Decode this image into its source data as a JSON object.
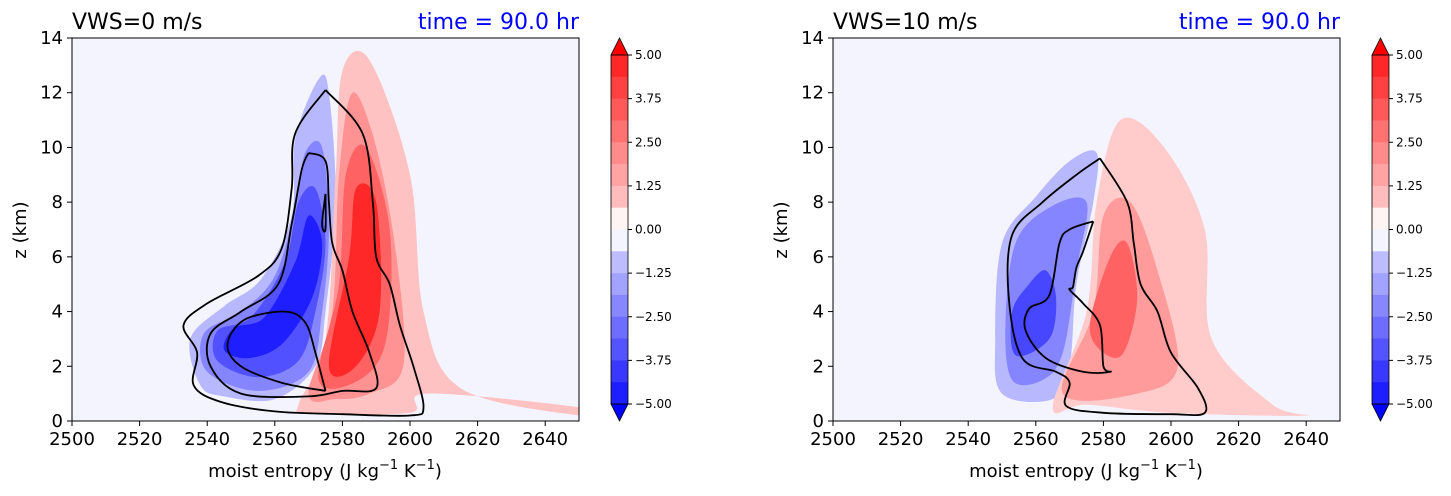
{
  "chart_data": [
    {
      "type": "contour",
      "title": "VWS=0 m/s",
      "title_right": "time = 90.0 hr",
      "title_right_color": "#0000ff",
      "xlabel": "moist entropy (J kg",
      "xlabel_sup1": "−1",
      "xlabel_mid": " K",
      "xlabel_sup2": "−1",
      "xlabel_end": ")",
      "ylabel": "z (km)",
      "xlim": [
        2500,
        2650
      ],
      "ylim": [
        0,
        14
      ],
      "xticks": [
        "2500",
        "2520",
        "2540",
        "2560",
        "2580",
        "2600",
        "2620",
        "2640"
      ],
      "yticks": [
        "0",
        "2",
        "4",
        "6",
        "8",
        "10",
        "12",
        "14"
      ],
      "colorbar": {
        "range": [
          -5.0,
          5.0
        ],
        "ticks": [
          "5.00",
          "3.75",
          "2.50",
          "1.25",
          "0.00",
          "−1.25",
          "−2.50",
          "−3.75",
          "−5.00"
        ],
        "cmap": "bwr"
      },
      "negative_regions": [
        {
          "level": 0.25,
          "points": [
            [
              2538,
              1.3
            ],
            [
              2535,
              3.0
            ],
            [
              2545,
              4.2
            ],
            [
              2556,
              5.2
            ],
            [
              2565,
              7.5
            ],
            [
              2566,
              10.3
            ],
            [
              2573,
              12.5
            ],
            [
              2576,
              12
            ],
            [
              2578,
              8
            ],
            [
              2575,
              4
            ],
            [
              2572,
              2
            ],
            [
              2560,
              0.8
            ],
            [
              2545,
              0.9
            ]
          ]
        },
        {
          "level": 0.5,
          "points": [
            [
              2540,
              1.8
            ],
            [
              2539,
              3.2
            ],
            [
              2550,
              4.0
            ],
            [
              2560,
              5.3
            ],
            [
              2566,
              7.8
            ],
            [
              2569,
              9.8
            ],
            [
              2574,
              10
            ],
            [
              2576,
              7
            ],
            [
              2574,
              4
            ],
            [
              2570,
              1.8
            ],
            [
              2555,
              1.1
            ]
          ]
        },
        {
          "level": 0.75,
          "points": [
            [
              2543,
              2.2
            ],
            [
              2543,
              3.3
            ],
            [
              2553,
              3.8
            ],
            [
              2563,
              5.8
            ],
            [
              2567,
              8
            ],
            [
              2572,
              8.5
            ],
            [
              2575,
              6.5
            ],
            [
              2572,
              4
            ],
            [
              2567,
              2.2
            ],
            [
              2555,
              1.6
            ]
          ]
        },
        {
          "level": 1.0,
          "points": [
            [
              2545,
              2.6
            ],
            [
              2548,
              3.4
            ],
            [
              2557,
              3.8
            ],
            [
              2566,
              5.8
            ],
            [
              2570,
              7.5
            ],
            [
              2574,
              6.5
            ],
            [
              2571,
              4.5
            ],
            [
              2562,
              2.8
            ],
            [
              2552,
              2.3
            ]
          ]
        }
      ],
      "positive_regions": [
        {
          "level": 0.2,
          "points": [
            [
              2567,
              0.6
            ],
            [
              2575,
              3.0
            ],
            [
              2578,
              9.0
            ],
            [
              2580,
              12.8
            ],
            [
              2588,
              13.2
            ],
            [
              2600,
              9
            ],
            [
              2604,
              4
            ],
            [
              2615,
              1.2
            ],
            [
              2650,
              0.2
            ],
            [
              2650,
              0.5
            ],
            [
              2605,
              1
            ],
            [
              2600,
              0.3
            ],
            [
              2570,
              0.3
            ]
          ]
        },
        {
          "level": 0.45,
          "points": [
            [
              2570,
              1.0
            ],
            [
              2577,
              4
            ],
            [
              2579,
              9
            ],
            [
              2583,
              12
            ],
            [
              2590,
              10
            ],
            [
              2596,
              6
            ],
            [
              2598,
              2
            ],
            [
              2588,
              1
            ],
            [
              2578,
              0.8
            ]
          ]
        },
        {
          "level": 0.7,
          "points": [
            [
              2573,
              1.5
            ],
            [
              2579,
              5
            ],
            [
              2581,
              9
            ],
            [
              2587,
              10
            ],
            [
              2594,
              7
            ],
            [
              2593,
              3
            ],
            [
              2585,
              1.5
            ]
          ]
        },
        {
          "level": 1.0,
          "points": [
            [
              2576,
              2
            ],
            [
              2582,
              6
            ],
            [
              2584,
              8.5
            ],
            [
              2590,
              8
            ],
            [
              2591,
              4
            ],
            [
              2584,
              2
            ]
          ]
        }
      ],
      "contour_lines": [
        {
          "points": [
            [
              2575,
              12.1
            ],
            [
              2586,
              10.5
            ],
            [
              2589,
              8
            ],
            [
              2590,
              6
            ],
            [
              2594,
              5
            ],
            [
              2597,
              3.5
            ],
            [
              2601,
              2.0
            ],
            [
              2604,
              0.5
            ],
            [
              2600,
              0.2
            ],
            [
              2580,
              0.25
            ],
            [
              2560,
              0.35
            ],
            [
              2544,
              0.7
            ],
            [
              2536,
              1.3
            ],
            [
              2537,
              2.5
            ],
            [
              2533,
              3.5
            ],
            [
              2540,
              4.3
            ],
            [
              2555,
              5.3
            ],
            [
              2562,
              6.3
            ],
            [
              2565,
              8.5
            ],
            [
              2566,
              10.5
            ],
            [
              2575,
              12.1
            ]
          ]
        },
        {
          "points": [
            [
              2570,
              9.8
            ],
            [
              2575,
              9.5
            ],
            [
              2576,
              8
            ],
            [
              2577,
              6.5
            ],
            [
              2580,
              5.5
            ],
            [
              2583,
              4.0
            ],
            [
              2588,
              2.5
            ],
            [
              2590,
              1.2
            ],
            [
              2580,
              1.1
            ],
            [
              2570,
              0.9
            ],
            [
              2550,
              1.0
            ],
            [
              2541,
              2.0
            ],
            [
              2541,
              3.2
            ],
            [
              2550,
              4.0
            ],
            [
              2561,
              5.0
            ],
            [
              2565,
              7.2
            ],
            [
              2568,
              9.2
            ],
            [
              2570,
              9.8
            ]
          ]
        },
        {
          "points": [
            [
              2575,
              1.1
            ],
            [
              2562,
              1.4
            ],
            [
              2550,
              2.0
            ],
            [
              2546,
              2.8
            ],
            [
              2551,
              3.7
            ],
            [
              2563,
              4.0
            ],
            [
              2569,
              3.6
            ],
            [
              2572,
              2.5
            ],
            [
              2575,
              1.1
            ]
          ]
        },
        {
          "points": [
            [
              2575,
              8.3
            ],
            [
              2574,
              7.2
            ],
            [
              2575,
              7.0
            ],
            [
              2575,
              8.3
            ]
          ]
        }
      ]
    },
    {
      "type": "contour",
      "title": "VWS=10 m/s",
      "title_right": "time = 90.0 hr",
      "title_right_color": "#0000ff",
      "xlabel": "moist entropy (J kg",
      "xlabel_sup1": "−1",
      "xlabel_mid": " K",
      "xlabel_sup2": "−1",
      "xlabel_end": ")",
      "ylabel": "z (km)",
      "xlim": [
        2500,
        2650
      ],
      "ylim": [
        0,
        14
      ],
      "xticks": [
        "2500",
        "2520",
        "2540",
        "2560",
        "2580",
        "2600",
        "2620",
        "2640"
      ],
      "yticks": [
        "0",
        "2",
        "4",
        "6",
        "8",
        "10",
        "12",
        "14"
      ],
      "colorbar": {
        "range": [
          -5.0,
          5.0
        ],
        "ticks": [
          "5.00",
          "3.75",
          "2.50",
          "1.25",
          "0.00",
          "−1.25",
          "−2.50",
          "−3.75",
          "−5.00"
        ],
        "cmap": "bwr"
      },
      "negative_regions": [
        {
          "level": 0.25,
          "points": [
            [
              2550,
              1.0
            ],
            [
              2548,
              3.0
            ],
            [
              2550,
              6.5
            ],
            [
              2560,
              8.2
            ],
            [
              2570,
              9.5
            ],
            [
              2578,
              9.8
            ],
            [
              2577,
              8
            ],
            [
              2572,
              5
            ],
            [
              2570,
              2
            ],
            [
              2565,
              0.8
            ]
          ]
        },
        {
          "level": 0.5,
          "points": [
            [
              2553,
              1.5
            ],
            [
              2551,
              3.5
            ],
            [
              2554,
              6.5
            ],
            [
              2564,
              7.8
            ],
            [
              2575,
              8.0
            ],
            [
              2572,
              5.5
            ],
            [
              2568,
              2.5
            ],
            [
              2562,
              1.5
            ]
          ]
        },
        {
          "level": 0.8,
          "points": [
            [
              2554,
              2.4
            ],
            [
              2553,
              4.0
            ],
            [
              2558,
              5.0
            ],
            [
              2563,
              5.5
            ],
            [
              2566,
              4.5
            ],
            [
              2564,
              3.0
            ]
          ]
        }
      ],
      "positive_regions": [
        {
          "level": 0.15,
          "points": [
            [
              2565,
              0.5
            ],
            [
              2575,
              4
            ],
            [
              2578,
              8
            ],
            [
              2585,
              11
            ],
            [
              2598,
              10
            ],
            [
              2610,
              7
            ],
            [
              2612,
              3
            ],
            [
              2630,
              0.6
            ],
            [
              2640,
              0.2
            ],
            [
              2600,
              0.3
            ],
            [
              2575,
              0.6
            ]
          ]
        },
        {
          "level": 0.4,
          "points": [
            [
              2568,
              1.0
            ],
            [
              2577,
              4
            ],
            [
              2580,
              7.5
            ],
            [
              2588,
              8
            ],
            [
              2596,
              5.5
            ],
            [
              2602,
              2
            ],
            [
              2590,
              1.0
            ]
          ]
        },
        {
          "level": 0.7,
          "points": [
            [
              2576,
              3.5
            ],
            [
              2582,
              6
            ],
            [
              2587,
              6.5
            ],
            [
              2590,
              4.5
            ],
            [
              2586,
              2.5
            ],
            [
              2580,
              2.5
            ]
          ]
        }
      ],
      "contour_lines": [
        {
          "points": [
            [
              2579,
              9.6
            ],
            [
              2587,
              8.0
            ],
            [
              2589,
              6.5
            ],
            [
              2591,
              5.0
            ],
            [
              2596,
              4.0
            ],
            [
              2600,
              2.5
            ],
            [
              2608,
              1.2
            ],
            [
              2610,
              0.3
            ],
            [
              2600,
              0.25
            ],
            [
              2580,
              0.3
            ],
            [
              2569,
              0.55
            ],
            [
              2570,
              1.4
            ],
            [
              2566,
              1.8
            ],
            [
              2556,
              2.3
            ],
            [
              2552,
              4.5
            ],
            [
              2553,
              6.8
            ],
            [
              2562,
              8.0
            ],
            [
              2572,
              9.0
            ],
            [
              2579,
              9.6
            ]
          ]
        },
        {
          "points": [
            [
              2577,
              7.3
            ],
            [
              2574,
              6.2
            ],
            [
              2572,
              5.6
            ],
            [
              2571,
              4.9
            ],
            [
              2570,
              4.8
            ],
            [
              2574,
              4.3
            ],
            [
              2579,
              3.5
            ],
            [
              2580,
              2.0
            ],
            [
              2582,
              1.8
            ],
            [
              2574,
              1.8
            ],
            [
              2563,
              2.3
            ],
            [
              2557,
              3.3
            ],
            [
              2558,
              4.1
            ],
            [
              2564,
              4.6
            ],
            [
              2567,
              6.5
            ],
            [
              2570,
              7.0
            ],
            [
              2577,
              7.3
            ]
          ]
        }
      ]
    }
  ]
}
